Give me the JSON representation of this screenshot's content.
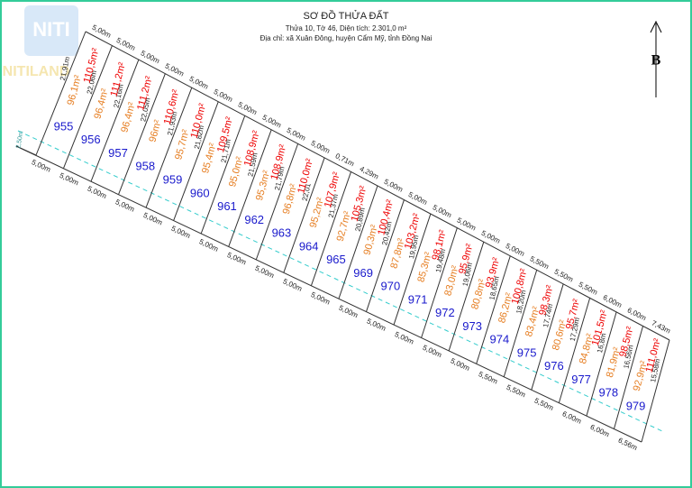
{
  "header": {
    "title": "SƠ ĐỒ THỬA ĐẤT",
    "subtitle": "Thửa 10, Tờ 46, Diện tích: 2.301,0 m²",
    "address": "Địa chỉ: xã Xuân Đông, huyện Cẩm Mỹ, tỉnh Đồng Nai"
  },
  "logo": {
    "main": "NITI",
    "sub": "NITILAND"
  },
  "north": "B",
  "left_edge": "2,50m",
  "plots": [
    {
      "number": "955",
      "area_inner": "96,1m²",
      "area_total": "110,5m²"
    },
    {
      "number": "956",
      "area_inner": "96,4m²",
      "area_total": "111,2m²"
    },
    {
      "number": "957",
      "area_inner": "96,4m²",
      "area_total": "111,2m²"
    },
    {
      "number": "958",
      "area_inner": "96m²",
      "area_total": "110,6m²"
    },
    {
      "number": "959",
      "area_inner": "95,7m²",
      "area_total": "110,0m²"
    },
    {
      "number": "960",
      "area_inner": "95,4m²",
      "area_total": "109,5m²"
    },
    {
      "number": "961",
      "area_inner": "95,0m²",
      "area_total": "108,9m²"
    },
    {
      "number": "962",
      "area_inner": "95,3m²",
      "area_total": "108,9m²"
    },
    {
      "number": "963",
      "area_inner": "96,8m²",
      "area_total": "110,0m²"
    },
    {
      "number": "964",
      "area_inner": "95,2m²",
      "area_total": "107,9m²"
    },
    {
      "number": "965",
      "area_inner": "92,7m²",
      "area_total": "105,3m²"
    },
    {
      "number": "969",
      "area_inner": "90,3m²",
      "area_total": "100,4m²"
    },
    {
      "number": "970",
      "area_inner": "87,8m²",
      "area_total": "103,2m²"
    },
    {
      "number": "971",
      "area_inner": "85,3m²",
      "area_total": "98,1m²"
    },
    {
      "number": "972",
      "area_inner": "83,0m²",
      "area_total": "95,9m²"
    },
    {
      "number": "973",
      "area_inner": "80,8m²",
      "area_total": "93,9m²"
    },
    {
      "number": "974",
      "area_inner": "86,2m²",
      "area_total": "100,8m²"
    },
    {
      "number": "975",
      "area_inner": "83,4m²",
      "area_total": "98,3m²"
    },
    {
      "number": "976",
      "area_inner": "80,6m²",
      "area_total": "95,7m²"
    },
    {
      "number": "977",
      "area_inner": "84,8m²",
      "area_total": "101,5m²"
    },
    {
      "number": "978",
      "area_inner": "81,9m²",
      "area_total": "98,5m²"
    },
    {
      "number": "979",
      "area_inner": "92,9m²",
      "area_total": "111,0m²"
    }
  ],
  "side_lengths": [
    "21,91m",
    "22,06m",
    "22,16m",
    "22,05m",
    "21,93m",
    "21,82m",
    "21,71m",
    "21,59m",
    "21,79m",
    "22,01",
    "21,37m",
    "20,89m",
    "20,42m",
    "19,95m",
    "19,48m",
    "19,06m",
    "18,65m",
    "18,20m",
    "17,74m",
    "17,29m",
    "16,8m",
    "16,56m",
    "15,58m"
  ],
  "top_edges": [
    "5,00m",
    "5,00m",
    "5,00m",
    "5,00m",
    "5,00m",
    "5,00m",
    "5,00m",
    "5,00m",
    "5,00m",
    "5,00m",
    "0,71m",
    "4,29m",
    "5,00m",
    "5,00m",
    "5,00m",
    "5,00m",
    "5,00m",
    "5,00m",
    "5,50m",
    "5,50m",
    "5,50m",
    "6,00m",
    "6,00m",
    "7,43m"
  ],
  "bottom_edges": [
    "5,00m",
    "5,00m",
    "5,00m",
    "5,00m",
    "5,00m",
    "5,00m",
    "5,00m",
    "5,00m",
    "5,00m",
    "5,00m",
    "5,00m",
    "5,00m",
    "5,00m",
    "5,00m",
    "5,00m",
    "5,00m",
    "5,50m",
    "5,50m",
    "5,50m",
    "6,00m",
    "6,00m",
    "6,56m"
  ]
}
